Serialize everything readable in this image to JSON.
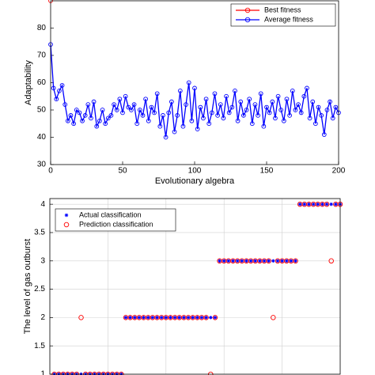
{
  "chart_data": [
    {
      "type": "line",
      "x_label": "Evolutionary algebra",
      "y_label": "Adaptability",
      "x": [
        0,
        2,
        4,
        6,
        8,
        10,
        12,
        14,
        16,
        18,
        20,
        22,
        24,
        26,
        28,
        30,
        32,
        34,
        36,
        38,
        40,
        42,
        44,
        46,
        48,
        50,
        52,
        54,
        56,
        58,
        60,
        62,
        64,
        66,
        68,
        70,
        72,
        74,
        76,
        78,
        80,
        82,
        84,
        86,
        88,
        90,
        92,
        94,
        96,
        98,
        100,
        102,
        104,
        106,
        108,
        110,
        112,
        114,
        116,
        118,
        120,
        122,
        124,
        126,
        128,
        130,
        132,
        134,
        136,
        138,
        140,
        142,
        144,
        146,
        148,
        150,
        152,
        154,
        156,
        158,
        160,
        162,
        164,
        166,
        168,
        170,
        172,
        174,
        176,
        178,
        180,
        182,
        184,
        186,
        188,
        190,
        192,
        194,
        196,
        198,
        200
      ],
      "series": [
        {
          "name": "Best fitness",
          "color": "#ff0000",
          "x": [
            0
          ],
          "values": [
            90
          ]
        },
        {
          "name": "Average fitness",
          "color": "#0000ff",
          "values": [
            74,
            58,
            54,
            57,
            59,
            52,
            46,
            48,
            45,
            50,
            49,
            46,
            48,
            52,
            47,
            53,
            44,
            46,
            50,
            45,
            47,
            48,
            52,
            50,
            54,
            49,
            55,
            51,
            50,
            52,
            45,
            50,
            48,
            54,
            46,
            51,
            49,
            56,
            44,
            48,
            40,
            49,
            53,
            42,
            48,
            57,
            44,
            52,
            60,
            46,
            58,
            43,
            51,
            47,
            54,
            45,
            49,
            56,
            48,
            52,
            47,
            55,
            49,
            51,
            57,
            46,
            53,
            48,
            50,
            54,
            45,
            52,
            48,
            56,
            44,
            51,
            49,
            53,
            47,
            55,
            50,
            46,
            54,
            48,
            57,
            50,
            52,
            49,
            55,
            58,
            47,
            53,
            45,
            51,
            48,
            41,
            50,
            53,
            47,
            51,
            49
          ]
        }
      ],
      "xlim": [
        0,
        200
      ],
      "xticks": [
        0,
        50,
        100,
        150,
        200
      ],
      "ylim": [
        30,
        90
      ],
      "yticks": [
        30,
        40,
        50,
        60,
        70,
        80
      ],
      "grid": false,
      "legend": "upper right"
    },
    {
      "type": "scatter",
      "y_label": "The level of gas outburst",
      "x": [
        1,
        2,
        3,
        4,
        5,
        6,
        7,
        8,
        9,
        10,
        11,
        12,
        13,
        14,
        15,
        16,
        17,
        18,
        19,
        20,
        21,
        22,
        23,
        24,
        25,
        26,
        27,
        28,
        29,
        30,
        31,
        32,
        33,
        34,
        35,
        36,
        37,
        38,
        39,
        40,
        41,
        42,
        43,
        44,
        45,
        46,
        47,
        48,
        49,
        50,
        51,
        52,
        53,
        54,
        55,
        56,
        57,
        58,
        59,
        60,
        61,
        62,
        63,
        64,
        65
      ],
      "series": [
        {
          "name": "Actual classification",
          "color": "#0000ff",
          "marker": "asterisk",
          "values": [
            1,
            1,
            1,
            1,
            1,
            1,
            1,
            1,
            1,
            1,
            1,
            1,
            1,
            1,
            1,
            1,
            2,
            2,
            2,
            2,
            2,
            2,
            2,
            2,
            2,
            2,
            2,
            2,
            2,
            2,
            2,
            2,
            2,
            2,
            2,
            2,
            2,
            3,
            3,
            3,
            3,
            3,
            3,
            3,
            3,
            3,
            3,
            3,
            3,
            3,
            3,
            3,
            3,
            3,
            3,
            4,
            4,
            4,
            4,
            4,
            4,
            4,
            4,
            4,
            4
          ]
        },
        {
          "name": "Prediction classification",
          "color": "#ff0000",
          "marker": "circle",
          "values": [
            1,
            1,
            1,
            1,
            1,
            1,
            2,
            1,
            1,
            1,
            1,
            1,
            1,
            1,
            1,
            1,
            2,
            2,
            2,
            2,
            2,
            2,
            2,
            2,
            2,
            2,
            2,
            2,
            2,
            2,
            2,
            2,
            2,
            2,
            2,
            1,
            2,
            3,
            3,
            3,
            3,
            3,
            3,
            3,
            3,
            3,
            3,
            3,
            3,
            2,
            3,
            3,
            3,
            3,
            3,
            4,
            4,
            4,
            4,
            4,
            4,
            4,
            3,
            4,
            4
          ]
        }
      ],
      "xlim": [
        0,
        65
      ],
      "xgrid": [
        13,
        26,
        39,
        52
      ],
      "ylim": [
        1,
        4.1
      ],
      "yticks": [
        1,
        1.5,
        2,
        2.5,
        3,
        3.5,
        4
      ],
      "grid": true,
      "legend": "upper left"
    }
  ]
}
